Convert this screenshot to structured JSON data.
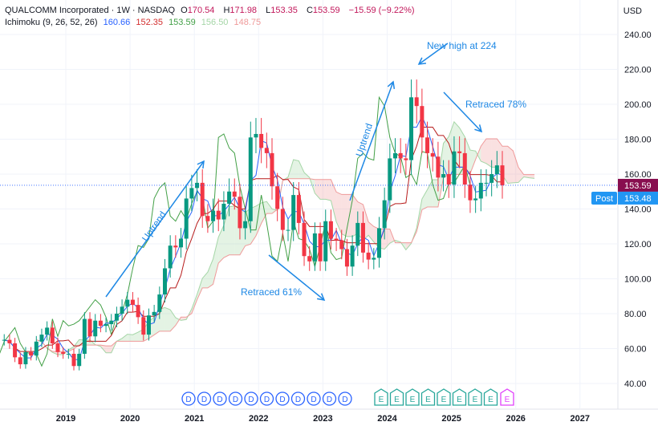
{
  "header": {
    "symbol": "QUALCOMM Incorporated · 1W · NASDAQ",
    "open_label": "O",
    "open": "170.54",
    "high_label": "H",
    "high": "171.98",
    "low_label": "L",
    "low": "153.35",
    "close_label": "C",
    "close": "153.59",
    "change": "−15.59 (−9.22%)",
    "indicator": "Ichimoku (9, 26, 52, 26)",
    "ind_values": [
      "160.66",
      "152.35",
      "153.59",
      "156.50",
      "148.75"
    ]
  },
  "currency": "USD",
  "price_tag": {
    "value": "153.59",
    "color": "#880e4f"
  },
  "post_tag": {
    "label": "Post",
    "value": "153.48",
    "color": "#2196f3"
  },
  "colors": {
    "tenkan": "#2962ff",
    "kijun": "#b71c1c",
    "lagging": "#43a047",
    "spanA": "#a5d6a7",
    "spanB": "#ef9a9a",
    "up": "#089981",
    "down": "#f23645",
    "annotation": "#1e88e5"
  },
  "chart_data": {
    "type": "candlestick",
    "x_ticks": [
      "2019",
      "2020",
      "2021",
      "2022",
      "2023",
      "2024",
      "2025",
      "2026",
      "2027"
    ],
    "y_ticks": [
      "40.00",
      "60.00",
      "80.00",
      "100.00",
      "120.00",
      "140.00",
      "160.00",
      "180.00",
      "200.00",
      "220.00",
      "240.00"
    ],
    "ylim": [
      40,
      240
    ],
    "xlim": [
      "2017-12",
      "2027-07"
    ],
    "start": "2018-01",
    "interval": "monthly (approx.)",
    "close": [
      65,
      63,
      55,
      51,
      58,
      56,
      64,
      68,
      72,
      63,
      58,
      57,
      57,
      50,
      57,
      77,
      67,
      76,
      73,
      74,
      76,
      80,
      84,
      88,
      85,
      78,
      68,
      79,
      81,
      91,
      106,
      119,
      118,
      123,
      146,
      152,
      155,
      136,
      133,
      139,
      134,
      143,
      150,
      147,
      129,
      133,
      181,
      183,
      175,
      172,
      153,
      140,
      128,
      128,
      148,
      132,
      113,
      110,
      126,
      110,
      133,
      123,
      122,
      117,
      107,
      119,
      132,
      115,
      111,
      112,
      129,
      145,
      169,
      172,
      169,
      168,
      204,
      199,
      181,
      172,
      170,
      158,
      160,
      154,
      173,
      172,
      154,
      145,
      146,
      155,
      155,
      160,
      165,
      153.59
    ],
    "annotations": [
      "Uptrend",
      "Uptrend",
      "Retraced 61%",
      "New high at 224",
      "Retraced 78%"
    ],
    "event_markers": [
      "D",
      "D",
      "D",
      "D",
      "D",
      "D",
      "D",
      "D",
      "D",
      "D",
      "D",
      "E",
      "E",
      "E",
      "E",
      "E",
      "E",
      "E",
      "E",
      "E"
    ]
  }
}
